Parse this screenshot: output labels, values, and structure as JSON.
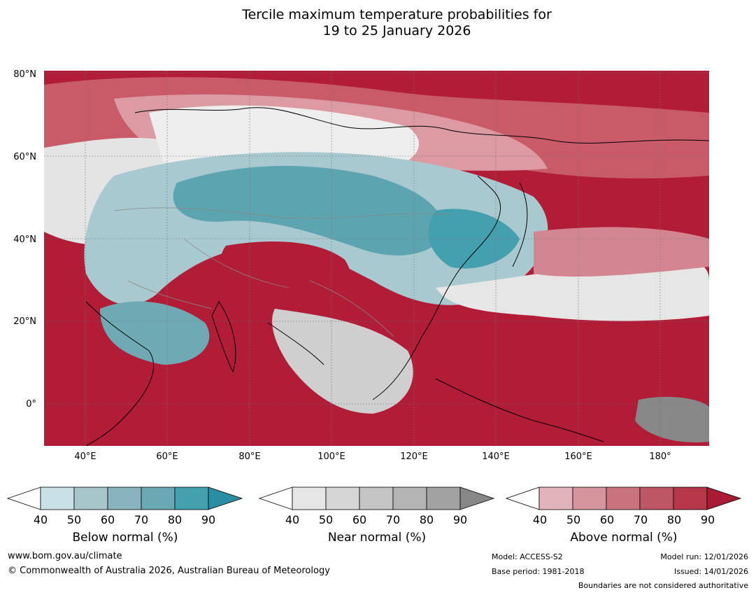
{
  "title": {
    "line1": "Tercile maximum temperature probabilities for",
    "line2": "19 to 25 January 2026"
  },
  "map": {
    "lat_labels": [
      "80°N",
      "60°N",
      "40°N",
      "20°N",
      "0°"
    ],
    "lon_labels": [
      "40°E",
      "60°E",
      "80°E",
      "100°E",
      "120°E",
      "140°E",
      "160°E",
      "180°"
    ]
  },
  "legends": [
    {
      "label": "Below normal (%)",
      "ticks": [
        "40",
        "50",
        "60",
        "70",
        "80",
        "90"
      ],
      "colors": [
        "#ffffff",
        "#c9e1e6",
        "#a6c6cc",
        "#88b4bd",
        "#68a9b4",
        "#449fae",
        "#2a8ea2"
      ]
    },
    {
      "label": "Near normal (%)",
      "ticks": [
        "40",
        "50",
        "60",
        "70",
        "80",
        "90"
      ],
      "colors": [
        "#ffffff",
        "#e6e6e6",
        "#d6d6d6",
        "#c5c5c5",
        "#b4b4b4",
        "#a2a2a2",
        "#878787"
      ]
    },
    {
      "label": "Above normal (%)",
      "ticks": [
        "40",
        "50",
        "60",
        "70",
        "80",
        "90"
      ],
      "colors": [
        "#ffffff",
        "#e0b4ba",
        "#d4959d",
        "#c8737e",
        "#be5765",
        "#b63749",
        "#a91b34"
      ]
    }
  ],
  "footer": {
    "website": "www.bom.gov.au/climate",
    "copyright": "© Commonwealth of Australia 2026, Australian Bureau of Meteorology",
    "model": "Model: ACCESS-S2",
    "base_period": "Base period: 1981-2018",
    "model_run": "Model run: 12/01/2026",
    "issued": "Issued: 14/01/2026",
    "disclaimer": "Boundaries are not considered authoritative"
  }
}
